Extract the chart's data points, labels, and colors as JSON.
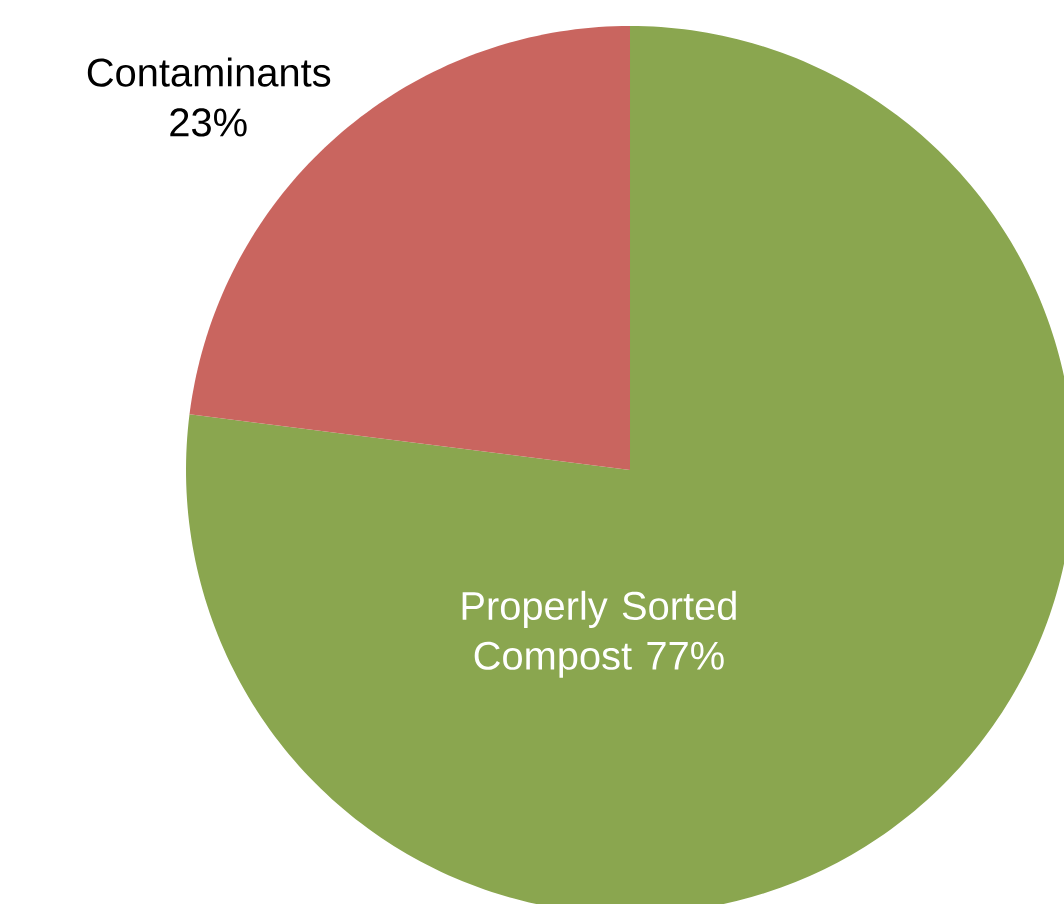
{
  "chart_data": {
    "type": "pie",
    "categories": [
      "Properly Sorted Compost",
      "Contaminants"
    ],
    "values": [
      77,
      23
    ],
    "value_labels": [
      "77%",
      "23%"
    ],
    "colors": [
      "#8aa64f",
      "#c9655f"
    ]
  }
}
